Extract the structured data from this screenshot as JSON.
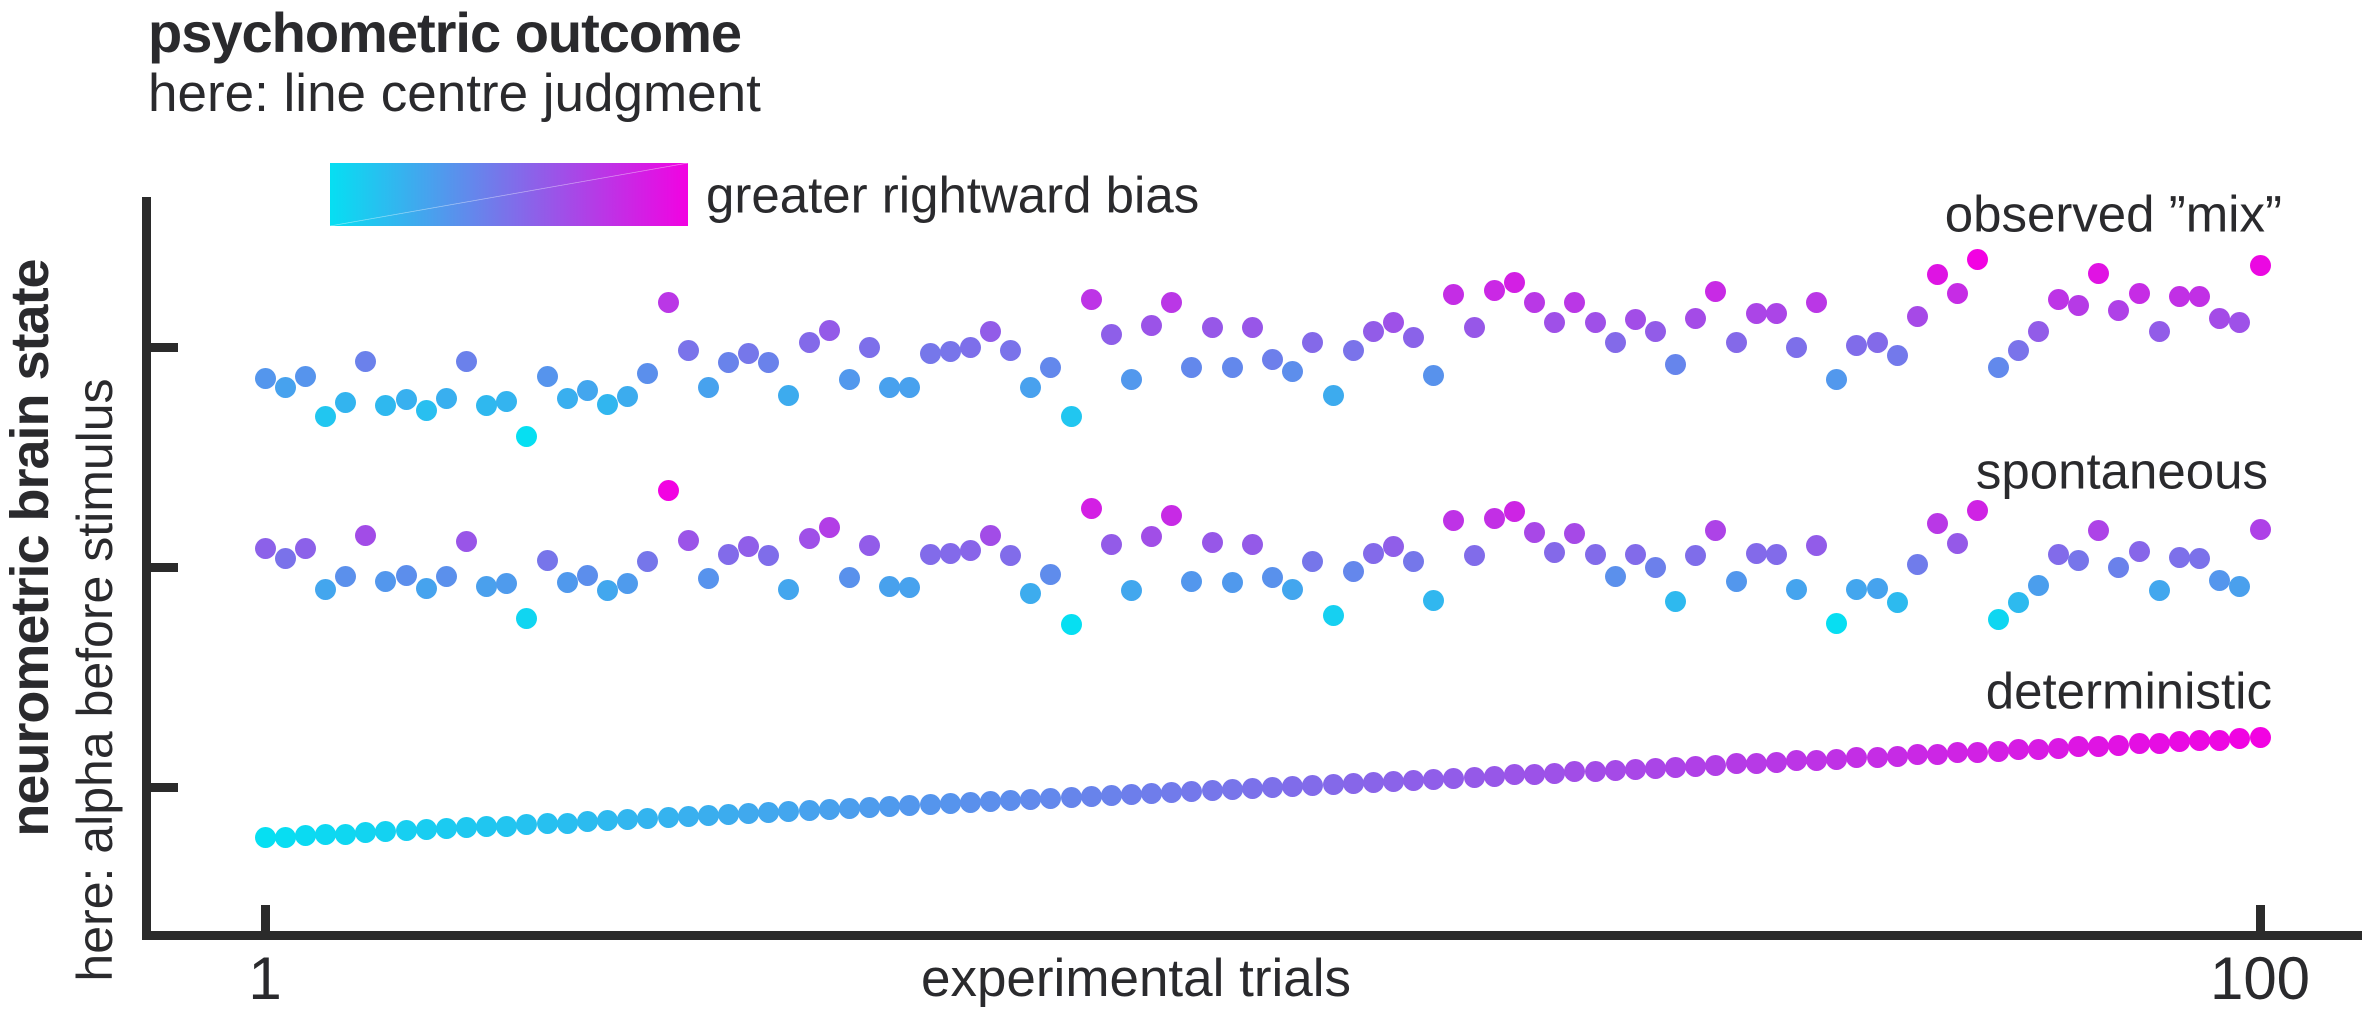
{
  "figure": {
    "title": "psychometric outcome",
    "subtitle": "here: line centre judgment",
    "colorbar_label": "greater rightward bias",
    "y_axis_title": "neurometric brain state",
    "y_axis_subtitle": "here: alpha before stimulus",
    "x_axis_label": "experimental trials",
    "x_tick_first": "1",
    "x_tick_last": "100",
    "accent_cyan": "#06dff2",
    "accent_magenta": "#f202e2",
    "axis_color": "#2b2b2b",
    "text_color": "#2a2a2d"
  },
  "chart_data": {
    "type": "scatter",
    "title": "psychometric outcome — here: line centre judgment",
    "xlabel": "experimental trials",
    "ylabel": "neurometric brain state (here: alpha before stimulus)",
    "x_range": [
      1,
      100
    ],
    "y_range": [
      0,
      100
    ],
    "x_ticks": [
      "1",
      "100"
    ],
    "y_ticks_shown": 3,
    "grid": false,
    "legend_position": "right-of-each-series",
    "colormap": [
      "#06dff2",
      "#f202e2"
    ],
    "color_encoding": "dot colour = line-centre judgment (cyan = leftward, magenta = greater rightward bias), scaled within each series to its alpha level",
    "series": [
      {
        "name": "observed-mix",
        "label": "observed ”mix”",
        "values": [
          75.5,
          74.2,
          75.7,
          70.3,
          72.2,
          77.8,
          71.8,
          72.7,
          71.1,
          72.8,
          77.8,
          71.8,
          72.3,
          67.6,
          75.7,
          72.8,
          73.8,
          72.0,
          73.1,
          76.2,
          85.8,
          79.3,
          74.2,
          77.6,
          78.9,
          77.7,
          73.2,
          80.3,
          82.0,
          75.3,
          79.7,
          74.3,
          74.3,
          78.9,
          79.1,
          79.7,
          81.8,
          79.3,
          74.3,
          77.0,
          70.3,
          86.1,
          81.4,
          75.3,
          82.7,
          85.8,
          77.0,
          82.3,
          77.0,
          82.4,
          78.0,
          76.4,
          80.4,
          73.2,
          79.3,
          81.8,
          83.0,
          81.0,
          75.9,
          86.8,
          82.3,
          87.4,
          88.4,
          85.7,
          83.1,
          85.8,
          83.1,
          80.3,
          83.4,
          81.8,
          77.3,
          83.6,
          87.2,
          80.4,
          84.3,
          84.3,
          79.7,
          85.8,
          75.3,
          80.0,
          80.3,
          78.6,
          83.8,
          89.5,
          87.0,
          91.5,
          76.9,
          79.3,
          81.8,
          86.1,
          85.4,
          89.7,
          84.7,
          87.0,
          81.8,
          86.5,
          86.5,
          83.6,
          83.0,
          90.8
        ]
      },
      {
        "name": "spontaneous",
        "label": "spontaneous",
        "values": [
          52.5,
          51.1,
          52.5,
          46.9,
          48.7,
          54.2,
          48.1,
          48.8,
          47.1,
          48.7,
          53.5,
          47.4,
          47.8,
          43.0,
          50.9,
          47.9,
          48.8,
          46.8,
          47.8,
          50.8,
          60.3,
          53.6,
          48.4,
          51.7,
          52.8,
          51.5,
          46.9,
          53.9,
          55.4,
          48.6,
          52.9,
          47.3,
          47.2,
          51.7,
          51.8,
          52.2,
          54.2,
          51.6,
          46.4,
          49.0,
          42.2,
          57.9,
          53.0,
          46.8,
          54.1,
          57.0,
          48.1,
          53.3,
          47.9,
          53.1,
          48.6,
          46.9,
          50.8,
          43.4,
          49.4,
          51.8,
          52.8,
          50.7,
          45.5,
          56.3,
          51.6,
          56.6,
          57.5,
          54.6,
          51.9,
          54.5,
          51.7,
          48.7,
          51.7,
          50.0,
          45.3,
          51.5,
          55.0,
          48.1,
          51.8,
          51.7,
          47.0,
          52.9,
          42.3,
          46.9,
          47.1,
          45.2,
          50.3,
          55.9,
          53.2,
          57.6,
          42.9,
          45.2,
          47.5,
          51.7,
          50.9,
          55.0,
          49.9,
          52.1,
          46.8,
          51.3,
          51.2,
          48.2,
          47.4,
          55.1
        ]
      },
      {
        "name": "deterministic",
        "label": "deterministic",
        "values": [
          13.4,
          13.5,
          13.7,
          13.8,
          13.9,
          14.1,
          14.2,
          14.4,
          14.5,
          14.6,
          14.8,
          14.9,
          15.0,
          15.2,
          15.3,
          15.4,
          15.6,
          15.7,
          15.9,
          16.0,
          16.1,
          16.3,
          16.4,
          16.5,
          16.7,
          16.8,
          16.9,
          17.1,
          17.2,
          17.4,
          17.5,
          17.6,
          17.8,
          17.9,
          18.0,
          18.2,
          18.3,
          18.4,
          18.6,
          18.7,
          18.9,
          19.0,
          19.1,
          19.3,
          19.4,
          19.5,
          19.7,
          19.8,
          19.9,
          20.1,
          20.2,
          20.4,
          20.5,
          20.6,
          20.8,
          20.9,
          21.0,
          21.2,
          21.3,
          21.4,
          21.6,
          21.7,
          21.9,
          22.0,
          22.1,
          22.3,
          22.4,
          22.5,
          22.7,
          22.8,
          22.9,
          23.1,
          23.2,
          23.4,
          23.5,
          23.6,
          23.8,
          23.9,
          24.0,
          24.2,
          24.3,
          24.4,
          24.6,
          24.7,
          24.9,
          25.0,
          25.1,
          25.3,
          25.4,
          25.5,
          25.7,
          25.8,
          25.9,
          26.1,
          26.2,
          26.4,
          26.5,
          26.6,
          26.8,
          26.9
        ]
      }
    ]
  }
}
